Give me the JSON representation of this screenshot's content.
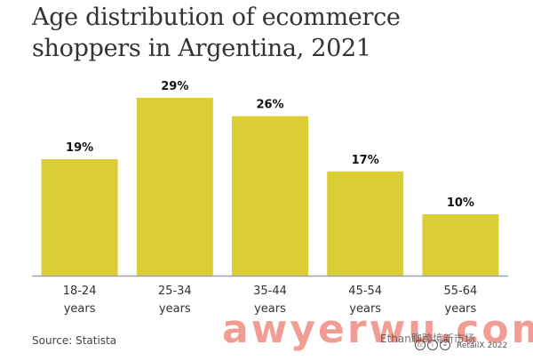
{
  "chart_data": {
    "type": "bar",
    "title": "Age distribution of ecommerce shoppers in Argentina, 2021",
    "categories": [
      [
        "18-24",
        "years"
      ],
      [
        "25-34",
        "years"
      ],
      [
        "35-44",
        "years"
      ],
      [
        "45-54",
        "years"
      ],
      [
        "55-64",
        "years"
      ]
    ],
    "values": [
      19,
      29,
      26,
      17,
      10
    ],
    "value_labels": [
      "19%",
      "29%",
      "26%",
      "17%",
      "10%"
    ],
    "ylim": [
      0,
      29
    ],
    "grid": false,
    "bar_color": "#dccc35"
  },
  "source": "Source: Statista",
  "copyright": "RetailX 2022",
  "watermark": {
    "main": "awyerwu.com",
    "sub": "Ethan聊跨境新市场"
  }
}
